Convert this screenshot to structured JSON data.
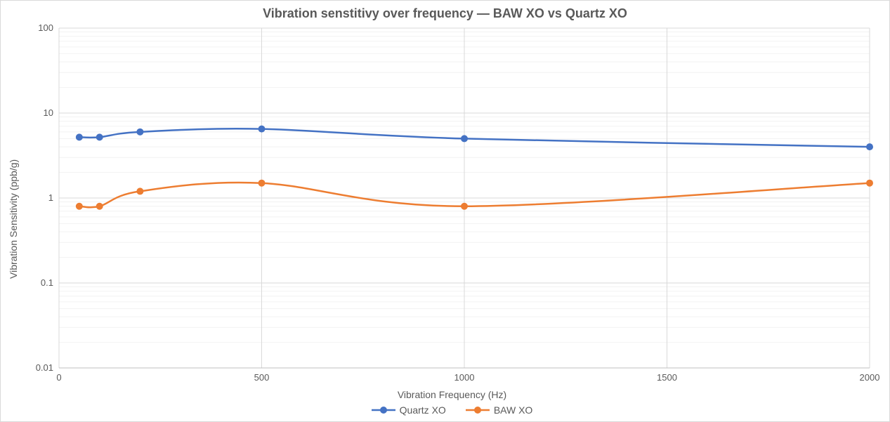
{
  "chart": {
    "type": "line-log-y",
    "title": "Vibration senstitivy over frequency — BAW XO vs Quartz XO",
    "title_fontsize": 18,
    "title_color": "#595959",
    "xlabel": "Vibration Frequency (Hz)",
    "ylabel": "Vibration Sensitivity (ppb/g)",
    "label_fontsize": 14,
    "label_color": "#595959",
    "background_color": "#ffffff",
    "plot_background_color": "#ffffff",
    "border_color": "#d9d9d9",
    "major_grid_color": "#d9d9d9",
    "minor_grid_color": "#f2f2f2",
    "axis_line_color": "#bfbfbf",
    "tick_color": "#595959",
    "x": {
      "min": 0,
      "max": 2000,
      "tick_step": 500,
      "ticks": [
        0,
        500,
        1000,
        1500,
        2000
      ]
    },
    "y": {
      "scale": "log",
      "min": 0.01,
      "max": 100,
      "major_ticks": [
        0.01,
        0.1,
        1,
        10,
        100
      ],
      "minor_ticks_per_decade": [
        2,
        3,
        4,
        5,
        6,
        7,
        8,
        9
      ]
    },
    "marker_radius": 5,
    "line_width": 2.5,
    "series": [
      {
        "name": "Quartz XO",
        "color": "#4472c4",
        "x": [
          50,
          100,
          200,
          500,
          1000,
          2000
        ],
        "y": [
          5.2,
          5.2,
          6.0,
          6.5,
          5.0,
          4.0
        ]
      },
      {
        "name": "BAW XO",
        "color": "#ed7d31",
        "x": [
          50,
          100,
          200,
          500,
          1000,
          2000
        ],
        "y": [
          0.8,
          0.8,
          1.2,
          1.5,
          0.8,
          1.5
        ]
      }
    ],
    "legend": {
      "position": "bottom",
      "font_size": 14,
      "text_color": "#595959"
    }
  }
}
